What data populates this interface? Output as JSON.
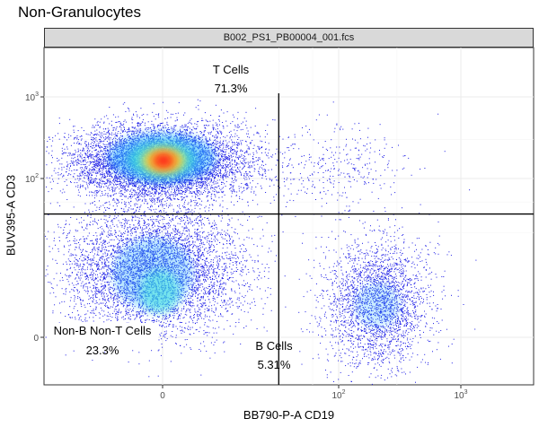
{
  "chart_data": {
    "type": "scatter",
    "title": "Non-Granulocytes",
    "facet_label": "B002_PS1_PB00004_001.fcs",
    "xlabel": "BB790-P-A CD19",
    "ylabel": "BUV395-A CD3",
    "x_ticks": [
      {
        "label": "0",
        "value": 0
      },
      {
        "label": "10²",
        "value": 100
      },
      {
        "label": "10³",
        "value": 1000
      }
    ],
    "y_ticks": [
      {
        "label": "0",
        "value": 0
      },
      {
        "label": "10²",
        "value": 100
      },
      {
        "label": "10³",
        "value": 1000
      }
    ],
    "x_scale": "biexponential",
    "y_scale": "biexponential",
    "grid": true,
    "gate_x": 20,
    "gate_y": 35,
    "gates": [
      {
        "name": "T Cells",
        "percent": "71.3%"
      },
      {
        "name": "Non-B Non-T Cells",
        "percent": "23.3%"
      },
      {
        "name": "B Cells",
        "percent": "5.31%"
      }
    ],
    "point_colors": [
      "#1d1de6",
      "#2fb2ff",
      "#3fe3e0",
      "#ffe63c",
      "#ff8a1f",
      "#ff1a1a"
    ]
  }
}
